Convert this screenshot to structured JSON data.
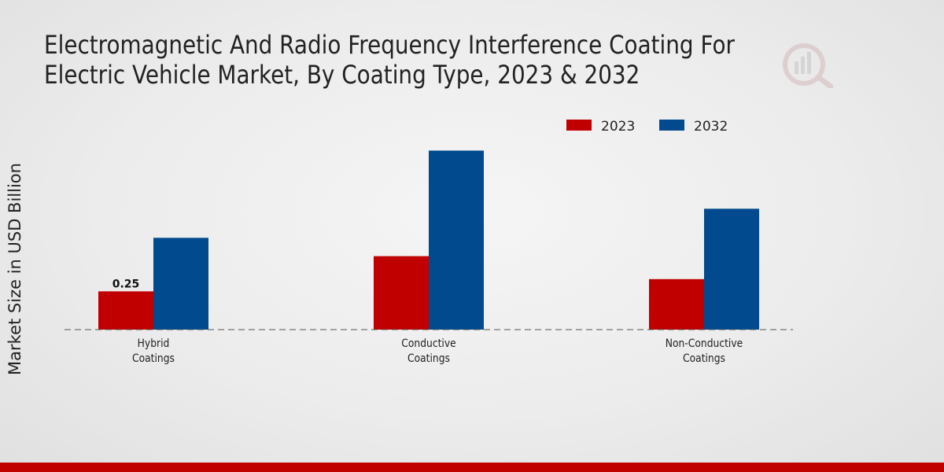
{
  "chart_data": {
    "type": "bar",
    "title": "Electromagnetic And Radio Frequency Interference Coating For Electric Vehicle Market, By Coating Type, 2023 & 2032",
    "ylabel": "Market Size in USD Billion",
    "xlabel": "",
    "categories": [
      "Hybrid Coatings",
      "Conductive Coatings",
      "Non-Conductive Coatings"
    ],
    "category_lines": [
      [
        "Hybrid",
        "Coatings"
      ],
      [
        "Conductive",
        "Coatings"
      ],
      [
        "Non-Conductive",
        "Coatings"
      ]
    ],
    "series": [
      {
        "name": "2023",
        "color": "#c00000",
        "values": [
          0.25,
          0.48,
          0.33
        ]
      },
      {
        "name": "2032",
        "color": "#004a8d",
        "values": [
          0.6,
          1.17,
          0.79
        ]
      }
    ],
    "data_labels": [
      {
        "series": 0,
        "index": 0,
        "text": "0.25"
      }
    ],
    "ylim": [
      0,
      2.0
    ],
    "grid": false,
    "legend_position": "top-right"
  },
  "colors": {
    "accent_bar": "#c00000",
    "axis_line": "#555555",
    "text": "#222222"
  }
}
